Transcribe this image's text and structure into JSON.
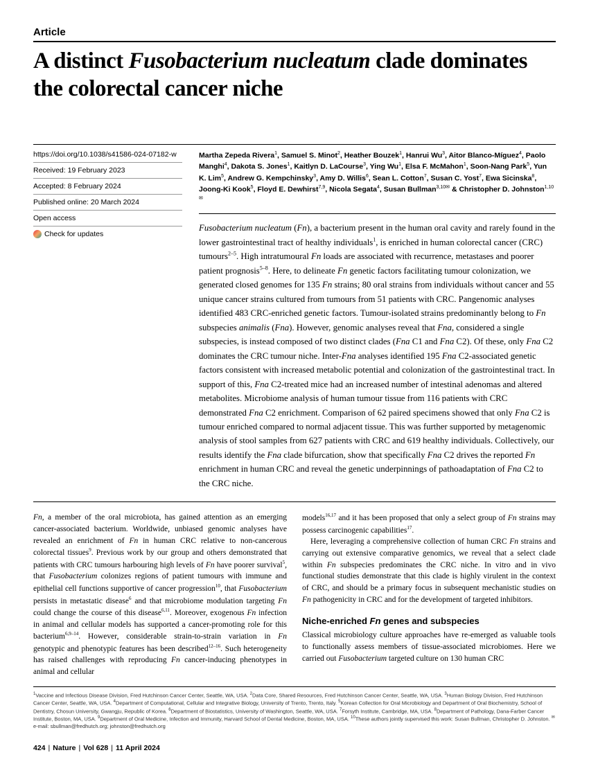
{
  "label": "Article",
  "title_pre": "A distinct ",
  "title_italic": "Fusobacterium nucleatum",
  "title_post": " clade dominates the colorectal cancer niche",
  "meta": {
    "doi": "https://doi.org/10.1038/s41586-024-07182-w",
    "received": "Received: 19 February 2023",
    "accepted": "Accepted: 8 February 2024",
    "published": "Published online: 20 March 2024",
    "access": "Open access",
    "check": "Check for updates"
  },
  "authors_html": "Martha Zepeda Rivera<sup>1</sup>, Samuel S. Minot<sup>2</sup>, Heather Bouzek<sup>1</sup>, Hanrui Wu<sup>3</sup>, Aitor Blanco-Míguez<sup>4</sup>, Paolo Manghi<sup>4</sup>, Dakota S. Jones<sup>1</sup>, Kaitlyn D. LaCourse<sup>3</sup>, Ying Wu<sup>1</sup>, Elsa F. McMahon<sup>1</sup>, Soon-Nang Park<sup>5</sup>, Yun K. Lim<sup>5</sup>, Andrew G. Kempchinsky<sup>3</sup>, Amy D. Willis<sup>6</sup>, Sean L. Cotton<sup>7</sup>, Susan C. Yost<sup>7</sup>, Ewa Sicinska<sup>8</sup>, Joong-Ki Kook<sup>5</sup>, Floyd E. Dewhirst<sup>7,9</sup>, Nicola Segata<sup>4</sup>, Susan Bullman<sup>3,10✉</sup> & Christopher D. Johnston<sup>1,10✉</sup>",
  "abstract_html": "<span class=\"italic\">Fusobacterium nucleatum</span> (<span class=\"italic\">Fn</span>), a bacterium present in the human oral cavity and rarely found in the lower gastrointestinal tract of healthy individuals<sup>1</sup>, is enriched in human colorectal cancer (CRC) tumours<sup>2–5</sup>. High intratumoural <span class=\"italic\">Fn</span> loads are associated with recurrence, metastases and poorer patient prognosis<sup>5–8</sup>. Here, to delineate <span class=\"italic\">Fn</span> genetic factors facilitating tumour colonization, we generated closed genomes for 135 <span class=\"italic\">Fn</span> strains; 80 oral strains from individuals without cancer and 55 unique cancer strains cultured from tumours from 51 patients with CRC. Pangenomic analyses identified 483 CRC-enriched genetic factors. Tumour-isolated strains predominantly belong to <span class=\"italic\">Fn</span> subspecies <span class=\"italic\">animalis</span> (<span class=\"italic\">Fna</span>). However, genomic analyses reveal that <span class=\"italic\">Fna</span>, considered a single subspecies, is instead composed of two distinct clades (<span class=\"italic\">Fna</span> C1 and <span class=\"italic\">Fna</span> C2). Of these, only <span class=\"italic\">Fna</span> C2 dominates the CRC tumour niche. Inter-<span class=\"italic\">Fna</span> analyses identified 195 <span class=\"italic\">Fna</span> C2-associated genetic factors consistent with increased metabolic potential and colonization of the gastrointestinal tract. In support of this, <span class=\"italic\">Fna</span> C2-treated mice had an increased number of intestinal adenomas and altered metabolites. Microbiome analysis of human tumour tissue from 116 patients with CRC demonstrated <span class=\"italic\">Fna</span> C2 enrichment. Comparison of 62 paired specimens showed that only <span class=\"italic\">Fna</span> C2 is tumour enriched compared to normal adjacent tissue. This was further supported by metagenomic analysis of stool samples from 627 patients with CRC and 619 healthy individuals. Collectively, our results identify the <span class=\"italic\">Fna</span> clade bifurcation, show that specifically <span class=\"italic\">Fna</span> C2 drives the reported <span class=\"italic\">Fn</span> enrichment in human CRC and reveal the genetic underpinnings of pathoadaptation of <span class=\"italic\">Fna</span> C2 to the CRC niche.",
  "col1_html": "<span class=\"italic\">Fn</span>, a member of the oral microbiota, has gained attention as an emerging cancer-associated bacterium. Worldwide, unbiased genomic analyses have revealed an enrichment of <span class=\"italic\">Fn</span> in human CRC relative to non-cancerous colorectal tissues<sup>9</sup>. Previous work by our group and others demonstrated that patients with CRC tumours harbouring high levels of <span class=\"italic\">Fn</span> have poorer survival<sup>5</sup>, that <span class=\"italic\">Fusobacterium</span> colonizes regions of patient tumours with immune and epithelial cell functions supportive of cancer progression<sup>10</sup>, that <span class=\"italic\">Fusobacterium</span> persists in metastatic disease<sup>6</sup> and that microbiome modulation targeting <span class=\"italic\">Fn</span> could change the course of this disease<sup>6,11</sup>. Moreover, exogenous <span class=\"italic\">Fn</span> infection in animal and cellular models has supported a cancer-promoting role for this bacterium<sup>6,9–14</sup>. However, considerable strain-to-strain variation in <span class=\"italic\">Fn</span> genotypic and phenotypic features has been described<sup>12–16</sup>. Such heterogeneity has raised challenges with reproducing <span class=\"italic\">Fn</span> cancer-inducing phenotypes in animal and cellular",
  "col2_p1_html": "models<sup>16,17</sup> and it has been proposed that only a select group of <span class=\"italic\">Fn</span> strains may possess carcinogenic capabilities<sup>17</sup>.",
  "col2_p2_html": "Here, leveraging a comprehensive collection of human CRC <span class=\"italic\">Fn</span> strains and carrying out extensive comparative genomics, we reveal that a select clade within <span class=\"italic\">Fn</span> subspecies predominates the CRC niche. In vitro and in vivo functional studies demonstrate that this clade is highly virulent in the context of CRC, and should be a primary focus in subsequent mechanistic studies on <span class=\"italic\">Fn</span> pathogenicity in CRC and for the development of targeted inhibitors.",
  "section_heading": "Niche-enriched Fn genes and subspecies",
  "col2_p3_html": "Classical microbiology culture approaches have re-emerged as valuable tools to functionally assess members of tissue-associated microbiomes. Here we carried out <span class=\"italic\">Fusobacterium</span> targeted culture on 130 human CRC",
  "affiliations_html": "<sup>1</sup>Vaccine and Infectious Disease Division, Fred Hutchinson Cancer Center, Seattle, WA, USA. <sup>2</sup>Data Core, Shared Resources, Fred Hutchinson Cancer Center, Seattle, WA, USA. <sup>3</sup>Human Biology Division, Fred Hutchinson Cancer Center, Seattle, WA, USA. <sup>4</sup>Department of Computational, Cellular and Integrative Biology, University of Trento, Trento, Italy. <sup>5</sup>Korean Collection for Oral Microbiology and Department of Oral Biochemistry, School of Dentistry, Chosun University, Gwangju, Republic of Korea. <sup>6</sup>Department of Biostatistics, University of Washington, Seattle, WA, USA. <sup>7</sup>Forsyth Institute, Cambridge, MA, USA. <sup>8</sup>Department of Pathology, Dana-Farber Cancer Institute, Boston, MA, USA. <sup>9</sup>Department of Oral Medicine, Infection and Immunity, Harvard School of Dental Medicine, Boston, MA, USA. <sup>10</sup>These authors jointly supervised this work: Susan Bullman, Christopher D. Johnston. <sup>✉</sup>e-mail: sbullman@fredhutch.org; johnston@fredhutch.org",
  "footer": {
    "page": "424",
    "journal": "Nature",
    "vol": "Vol 628",
    "date": "11 April 2024"
  }
}
